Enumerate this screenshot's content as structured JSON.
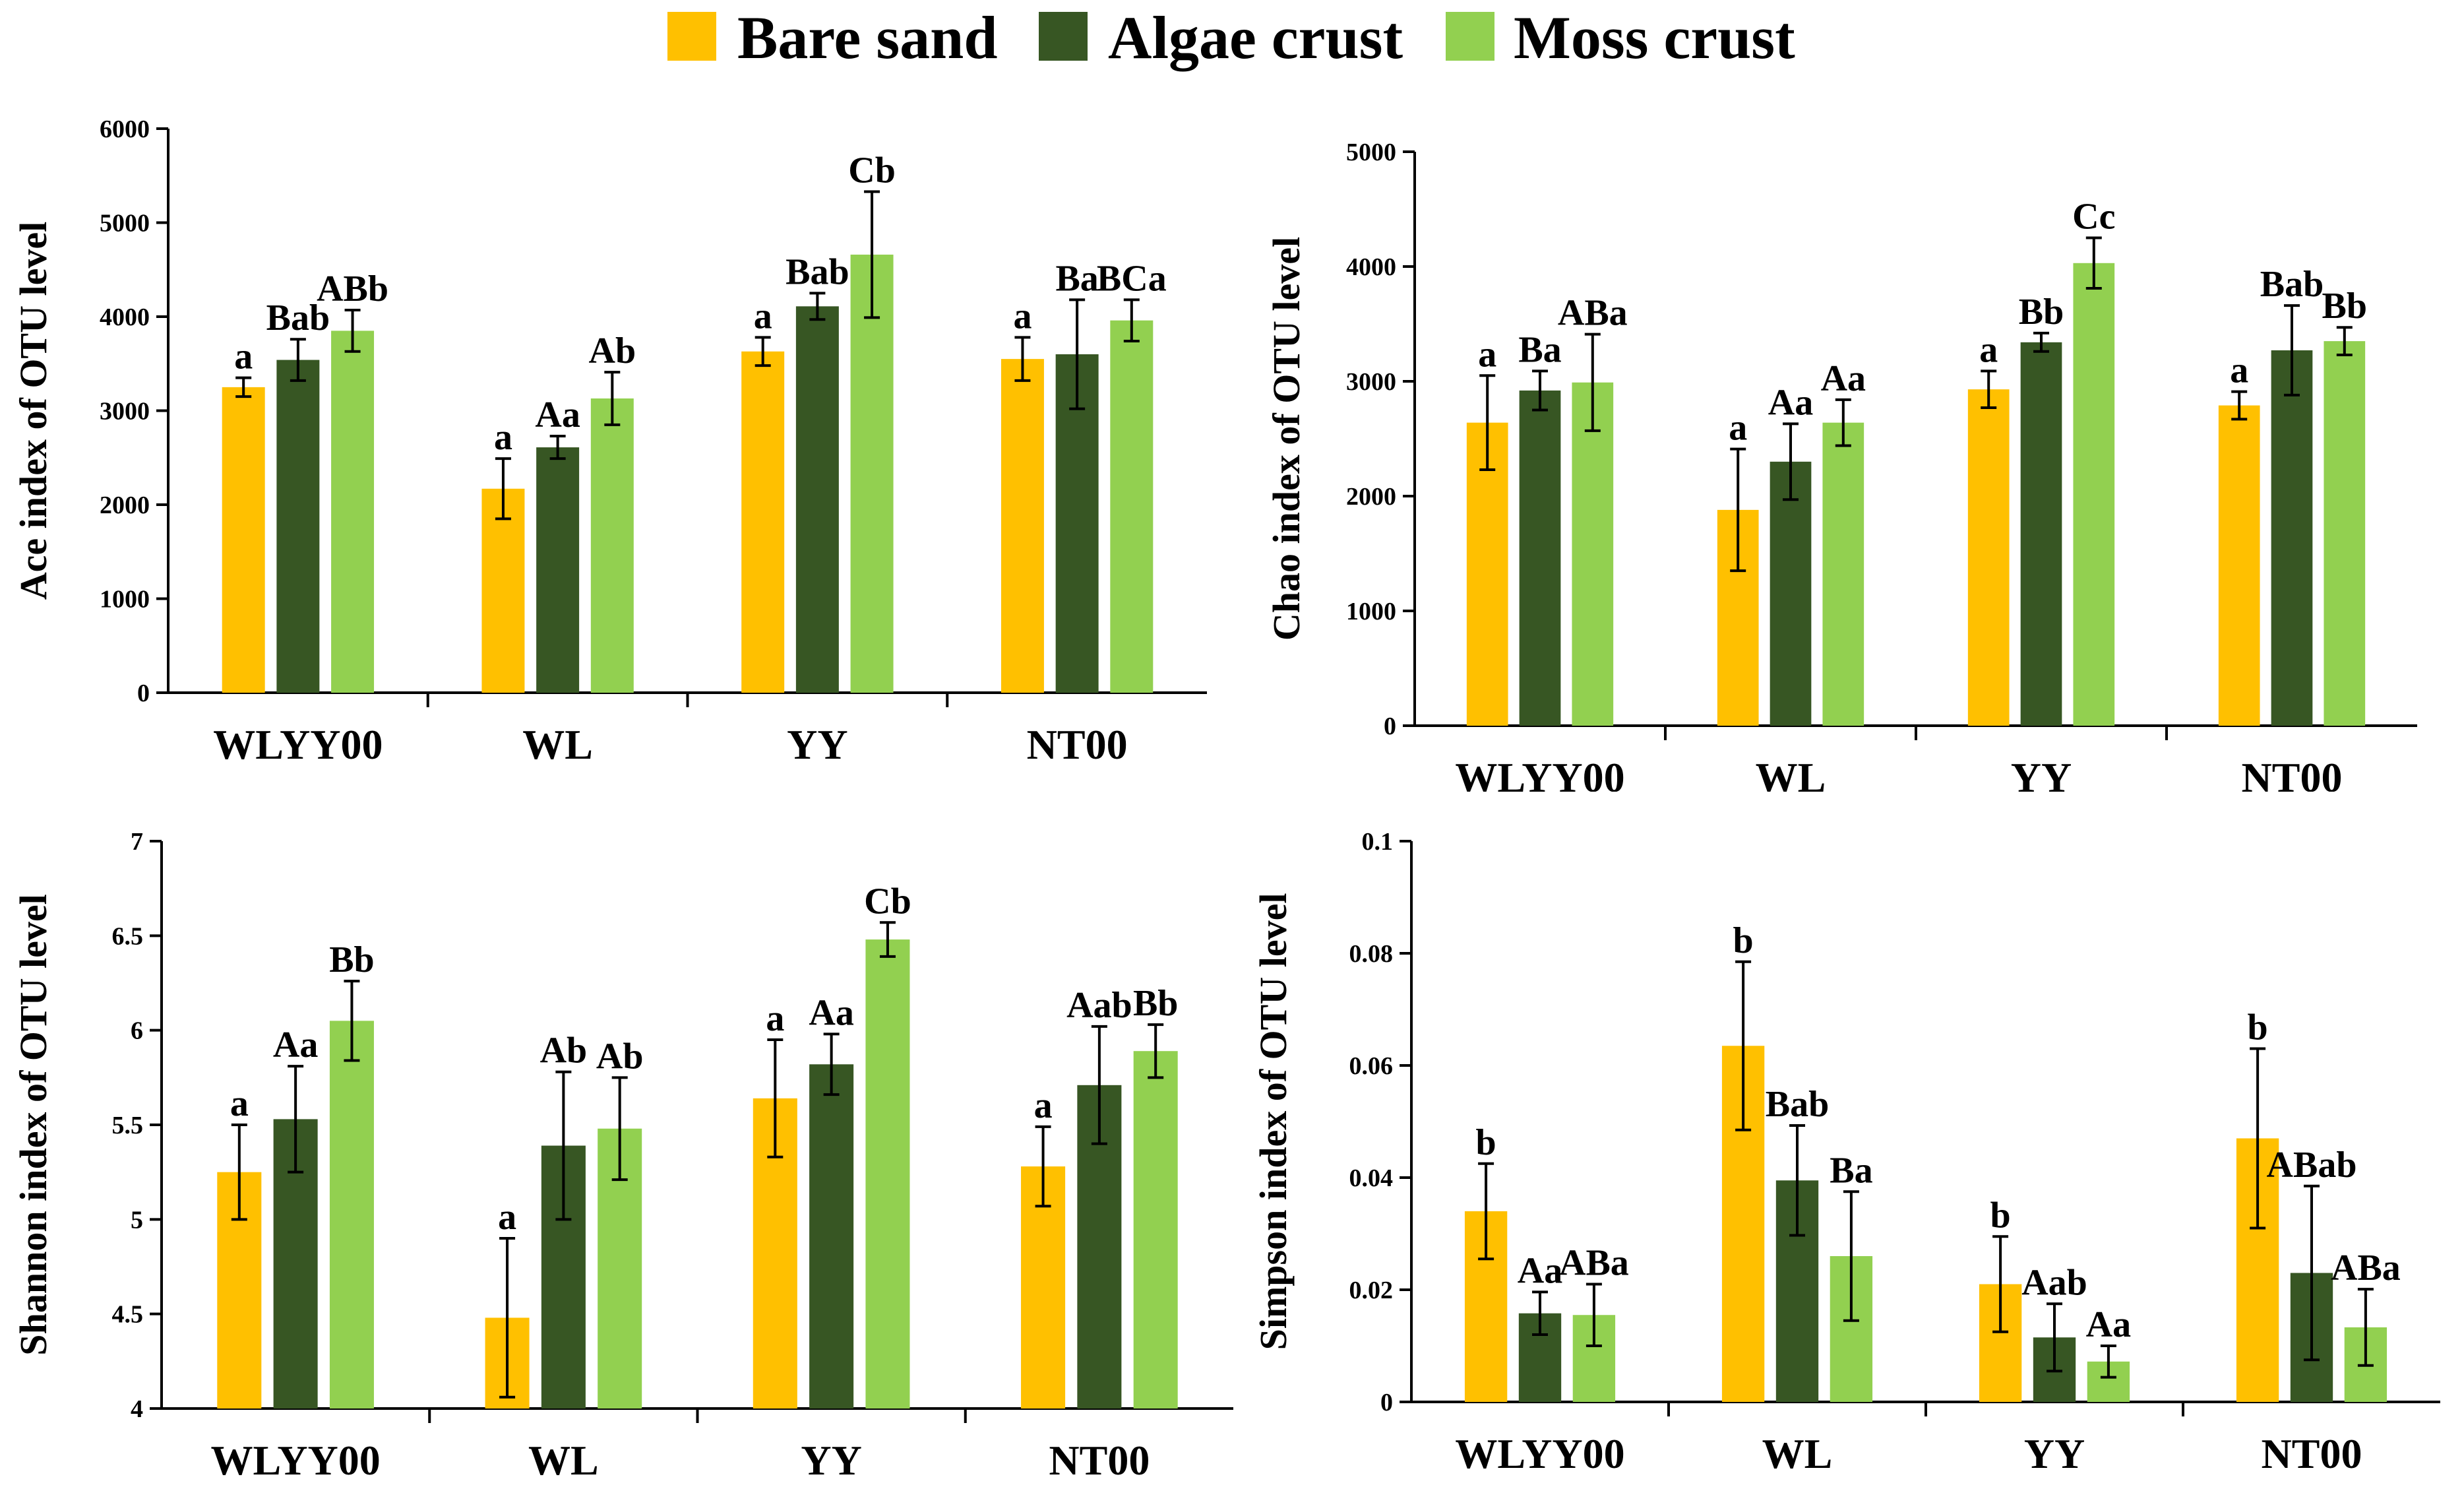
{
  "legend": {
    "entries": [
      {
        "name": "Bare sand",
        "color": "#FFC000"
      },
      {
        "name": "Algae crust",
        "color": "#375623"
      },
      {
        "name": "Moss crust",
        "color": "#92D050"
      }
    ]
  },
  "chart_data": [
    {
      "type": "bar",
      "id": "ace",
      "ylabel": "Ace index of OTU level",
      "categories": [
        "WLYY00",
        "WL",
        "YY",
        "NT00"
      ],
      "ylim": [
        0,
        6000
      ],
      "yticks": [
        "0",
        "1000",
        "2000",
        "3000",
        "4000",
        "5000",
        "6000"
      ],
      "series": [
        {
          "name": "Bare sand",
          "values": [
            3250,
            2170,
            3630,
            3550
          ],
          "errors": [
            100,
            320,
            150,
            230
          ],
          "labels": [
            "a",
            "a",
            "a",
            "a"
          ]
        },
        {
          "name": "Algae crust",
          "values": [
            3540,
            2610,
            4110,
            3600
          ],
          "errors": [
            220,
            120,
            140,
            580
          ],
          "labels": [
            "Bab",
            "Aa",
            "Bab",
            "Ba"
          ]
        },
        {
          "name": "Moss crust",
          "values": [
            3850,
            3130,
            4660,
            3960
          ],
          "errors": [
            220,
            280,
            670,
            220
          ],
          "labels": [
            "ABb",
            "Ab",
            "Cb",
            "BCa"
          ]
        }
      ]
    },
    {
      "type": "bar",
      "id": "chao",
      "ylabel": "Chao index of OTU level",
      "categories": [
        "WLYY00",
        "WL",
        "YY",
        "NT00"
      ],
      "ylim": [
        0,
        5000
      ],
      "yticks": [
        "0",
        "1000",
        "2000",
        "3000",
        "4000",
        "5000"
      ],
      "series": [
        {
          "name": "Bare sand",
          "values": [
            2640,
            1880,
            2930,
            2790
          ],
          "errors": [
            410,
            530,
            160,
            120
          ],
          "labels": [
            "a",
            "a",
            "a",
            "a"
          ]
        },
        {
          "name": "Algae crust",
          "values": [
            2920,
            2300,
            3340,
            3270
          ],
          "errors": [
            170,
            330,
            80,
            390
          ],
          "labels": [
            "Ba",
            "Aa",
            "Bb",
            "Bab"
          ]
        },
        {
          "name": "Moss crust",
          "values": [
            2990,
            2640,
            4030,
            3350
          ],
          "errors": [
            420,
            200,
            220,
            120
          ],
          "labels": [
            "ABa",
            "Aa",
            "Cc",
            "Bb"
          ]
        }
      ]
    },
    {
      "type": "bar",
      "id": "shannon",
      "ylabel": "Shannon index of OTU level",
      "categories": [
        "WLYY00",
        "WL",
        "YY",
        "NT00"
      ],
      "ylim": [
        4,
        7
      ],
      "yticks": [
        "4",
        "4.5",
        "5",
        "5.5",
        "6",
        "6.5",
        "7"
      ],
      "series": [
        {
          "name": "Bare sand",
          "values": [
            5.25,
            4.48,
            5.64,
            5.28
          ],
          "errors": [
            0.25,
            0.42,
            0.31,
            0.21
          ],
          "labels": [
            "a",
            "a",
            "a",
            "a"
          ]
        },
        {
          "name": "Algae crust",
          "values": [
            5.53,
            5.39,
            5.82,
            5.71
          ],
          "errors": [
            0.28,
            0.39,
            0.16,
            0.31
          ],
          "labels": [
            "Aa",
            "Ab",
            "Aa",
            "Aab"
          ]
        },
        {
          "name": "Moss crust",
          "values": [
            6.05,
            5.48,
            6.48,
            5.89
          ],
          "errors": [
            0.21,
            0.27,
            0.09,
            0.14
          ],
          "labels": [
            "Bb",
            "Ab",
            "Cb",
            "Bb"
          ]
        }
      ]
    },
    {
      "type": "bar",
      "id": "simpson",
      "ylabel": "Simpson index of OTU level",
      "categories": [
        "WLYY00",
        "WL",
        "YY",
        "NT00"
      ],
      "ylim": [
        0,
        0.1
      ],
      "yticks": [
        "0",
        "0.02",
        "0.04",
        "0.06",
        "0.08",
        "0.1"
      ],
      "series": [
        {
          "name": "Bare sand",
          "values": [
            0.034,
            0.0635,
            0.021,
            0.047
          ],
          "errors": [
            0.0085,
            0.015,
            0.0085,
            0.016
          ],
          "labels": [
            "b",
            "b",
            "b",
            "b"
          ]
        },
        {
          "name": "Algae crust",
          "values": [
            0.0158,
            0.0395,
            0.0115,
            0.023
          ],
          "errors": [
            0.0038,
            0.0098,
            0.006,
            0.0155
          ],
          "labels": [
            "Aa",
            "Bab",
            "Aab",
            "ABab"
          ]
        },
        {
          "name": "Moss crust",
          "values": [
            0.0155,
            0.026,
            0.0072,
            0.0133
          ],
          "errors": [
            0.0055,
            0.0115,
            0.0028,
            0.0068
          ],
          "labels": [
            "ABa",
            "Ba",
            "Aa",
            "ABa"
          ]
        }
      ]
    }
  ]
}
